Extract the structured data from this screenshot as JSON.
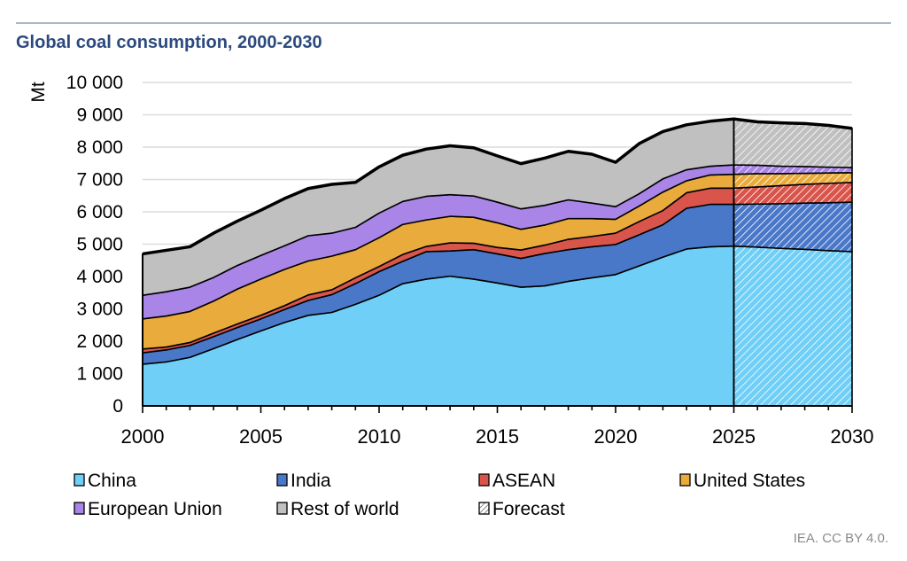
{
  "chart_data": {
    "type": "area",
    "stacked": true,
    "title": "Global coal consumption, 2000-2030",
    "ylabel": "Mt",
    "xlabel": "",
    "ylim": [
      0,
      10000
    ],
    "xlim": [
      2000,
      2030
    ],
    "yticks": [
      "0",
      "1 000",
      "2 000",
      "3 000",
      "4 000",
      "5 000",
      "6 000",
      "7 000",
      "8 000",
      "9 000",
      "10 000"
    ],
    "xticks": [
      "2000",
      "2005",
      "2010",
      "2015",
      "2020",
      "2025",
      "2030"
    ],
    "grid": true,
    "legend_position": "bottom",
    "forecast_start": 2025,
    "forecast_label": "Forecast",
    "x": [
      2000,
      2001,
      2002,
      2003,
      2004,
      2005,
      2006,
      2007,
      2008,
      2009,
      2010,
      2011,
      2012,
      2013,
      2014,
      2015,
      2016,
      2017,
      2018,
      2019,
      2020,
      2021,
      2022,
      2023,
      2024,
      2025,
      2026,
      2027,
      2028,
      2029,
      2030
    ],
    "series": [
      {
        "name": "China",
        "color": "#6fcff6",
        "values": [
          1290,
          1360,
          1500,
          1770,
          2050,
          2320,
          2580,
          2800,
          2890,
          3140,
          3420,
          3780,
          3920,
          4010,
          3920,
          3800,
          3670,
          3710,
          3850,
          3960,
          4060,
          4330,
          4600,
          4850,
          4920,
          4940,
          4910,
          4870,
          4840,
          4800,
          4770
        ]
      },
      {
        "name": "India",
        "color": "#4a78c9",
        "values": [
          350,
          370,
          370,
          370,
          370,
          370,
          400,
          460,
          550,
          640,
          730,
          690,
          850,
          780,
          910,
          900,
          890,
          1000,
          980,
          960,
          930,
          960,
          1000,
          1260,
          1310,
          1290,
          1330,
          1380,
          1430,
          1480,
          1530
        ]
      },
      {
        "name": "ASEAN",
        "color": "#d9544b",
        "values": [
          120,
          90,
          90,
          110,
          110,
          110,
          120,
          170,
          150,
          180,
          160,
          210,
          160,
          250,
          200,
          200,
          260,
          260,
          320,
          320,
          350,
          410,
          440,
          480,
          500,
          500,
          530,
          560,
          580,
          600,
          610
        ]
      },
      {
        "name": "United States",
        "color": "#e9ab3b",
        "values": [
          930,
          960,
          960,
          990,
          1080,
          1120,
          1120,
          1050,
          1040,
          870,
          890,
          930,
          820,
          820,
          800,
          760,
          640,
          620,
          640,
          550,
          430,
          480,
          570,
          370,
          410,
          430,
          410,
          370,
          340,
          320,
          300
        ]
      },
      {
        "name": "European Union",
        "color": "#a985e8",
        "values": [
          730,
          750,
          750,
          730,
          730,
          730,
          730,
          780,
          710,
          690,
          760,
          710,
          730,
          670,
          660,
          640,
          630,
          610,
          580,
          480,
          390,
          380,
          410,
          340,
          270,
          290,
          260,
          230,
          210,
          180,
          160
        ]
      },
      {
        "name": "Rest of world",
        "color": "#c0c0c0",
        "values": [
          1280,
          1280,
          1250,
          1370,
          1370,
          1400,
          1460,
          1460,
          1510,
          1390,
          1430,
          1430,
          1460,
          1510,
          1490,
          1430,
          1400,
          1460,
          1500,
          1510,
          1370,
          1550,
          1460,
          1390,
          1390,
          1420,
          1340,
          1340,
          1330,
          1290,
          1210
        ]
      }
    ]
  },
  "source": "IEA. CC BY 4.0."
}
